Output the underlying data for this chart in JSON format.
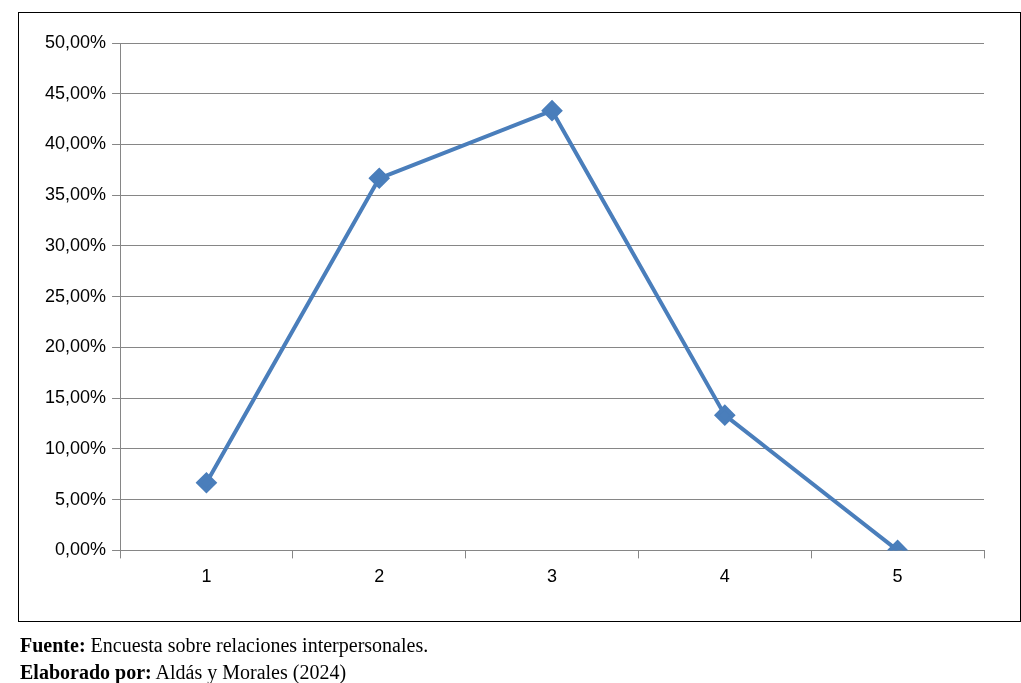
{
  "chart_data": {
    "type": "line",
    "categories": [
      "1",
      "2",
      "3",
      "4",
      "5"
    ],
    "series": [
      {
        "color": "#4a7ebb",
        "values": [
          6.67,
          36.67,
          43.33,
          13.33,
          0
        ]
      }
    ],
    "ylim": [
      0,
      50
    ],
    "yticks": [
      {
        "value": 0,
        "label": "0,00%"
      },
      {
        "value": 5,
        "label": "5,00%"
      },
      {
        "value": 10,
        "label": "10,00%"
      },
      {
        "value": 15,
        "label": "15,00%"
      },
      {
        "value": 20,
        "label": "20,00%"
      },
      {
        "value": 25,
        "label": "25,00%"
      },
      {
        "value": 30,
        "label": "30,00%"
      },
      {
        "value": 35,
        "label": "35,00%"
      },
      {
        "value": 40,
        "label": "40,00%"
      },
      {
        "value": 45,
        "label": "45,00%"
      },
      {
        "value": 50,
        "label": "50,00%"
      }
    ],
    "grid": "y",
    "legend": false,
    "marker": "diamond",
    "line_style": "solid",
    "annotations": [
      "Fuente: Encuesta sobre relaciones interpersonales.",
      "Elaborado por: Aldás y Morales (2024)"
    ]
  }
}
